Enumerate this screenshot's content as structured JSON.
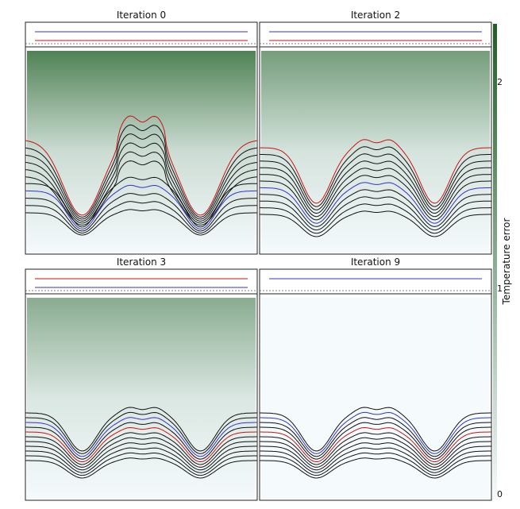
{
  "panels": [
    {
      "title": "Iteration 0",
      "error_level": 2.0
    },
    {
      "title": "Iteration 2",
      "error_level": 1.55
    },
    {
      "title": "Iteration 3",
      "error_level": 1.3
    },
    {
      "title": "Iteration 9",
      "error_level": 0.0
    }
  ],
  "colorbar": {
    "label": "Temperature error",
    "ticks": [
      "0",
      "1",
      "2"
    ],
    "range": [
      0,
      2.6
    ],
    "color_low": "#f5fafd",
    "color_high": "#1f5e23"
  },
  "colors": {
    "red": "#cc1111",
    "blue": "#3333cc",
    "contour": "#111111"
  }
}
